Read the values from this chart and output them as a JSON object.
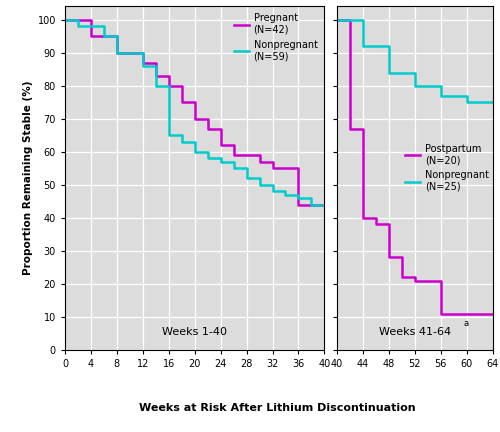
{
  "pregnant_x": [
    0,
    4,
    4,
    8,
    8,
    12,
    12,
    14,
    14,
    16,
    16,
    18,
    18,
    20,
    20,
    22,
    22,
    24,
    24,
    26,
    26,
    30,
    30,
    32,
    32,
    36,
    36,
    40
  ],
  "pregnant_y": [
    100,
    100,
    95,
    95,
    90,
    90,
    87,
    87,
    83,
    83,
    80,
    80,
    75,
    75,
    70,
    70,
    67,
    67,
    62,
    62,
    59,
    59,
    57,
    57,
    55,
    55,
    44,
    44
  ],
  "nonpregnant1_x": [
    0,
    2,
    2,
    6,
    6,
    8,
    8,
    12,
    12,
    14,
    14,
    16,
    16,
    18,
    18,
    20,
    20,
    22,
    22,
    24,
    24,
    26,
    26,
    28,
    28,
    30,
    30,
    32,
    32,
    34,
    34,
    36,
    36,
    38,
    38,
    40
  ],
  "nonpregnant1_y": [
    100,
    100,
    98,
    98,
    95,
    95,
    90,
    90,
    86,
    86,
    80,
    80,
    65,
    65,
    63,
    63,
    60,
    60,
    58,
    58,
    57,
    57,
    55,
    55,
    52,
    52,
    50,
    50,
    48,
    48,
    47,
    47,
    46,
    46,
    44,
    44
  ],
  "postpartum_x": [
    40,
    42,
    42,
    44,
    44,
    46,
    46,
    48,
    48,
    50,
    50,
    52,
    52,
    56,
    56,
    64
  ],
  "postpartum_y": [
    100,
    100,
    67,
    67,
    40,
    40,
    38,
    38,
    28,
    28,
    22,
    22,
    21,
    21,
    11,
    11
  ],
  "nonpregnant2_x": [
    40,
    44,
    44,
    48,
    48,
    52,
    52,
    56,
    56,
    60,
    60,
    64
  ],
  "nonpregnant2_y": [
    100,
    100,
    92,
    92,
    84,
    84,
    80,
    80,
    77,
    77,
    75,
    75
  ],
  "pregnant_color": "#CC00CC",
  "nonpregnant_color": "#00CCCC",
  "postpartum_color": "#CC00CC",
  "nonpregnant2_color": "#00CCCC",
  "ylabel": "Proportion Remaining Stable (%)",
  "xlabel": "Weeks at Risk After Lithium Discontinuation",
  "label1_text": "Weeks 1-40",
  "label2_text": "Weeks 41-64",
  "label2_superscript": "a",
  "legend1_labels": [
    "Pregnant\n(N=42)",
    "Nonpregnant\n(N=59)"
  ],
  "legend2_labels": [
    "Postpartum\n(N=20)",
    "Nonpregnant\n(N=25)"
  ],
  "yticks": [
    0,
    10,
    20,
    30,
    40,
    50,
    60,
    70,
    80,
    90,
    100
  ],
  "xticks1": [
    0,
    4,
    8,
    12,
    16,
    20,
    24,
    28,
    32,
    36,
    40
  ],
  "xticks2": [
    40,
    44,
    48,
    52,
    56,
    60,
    64
  ],
  "bg_color": "#DCDCDC",
  "line_width": 1.8
}
